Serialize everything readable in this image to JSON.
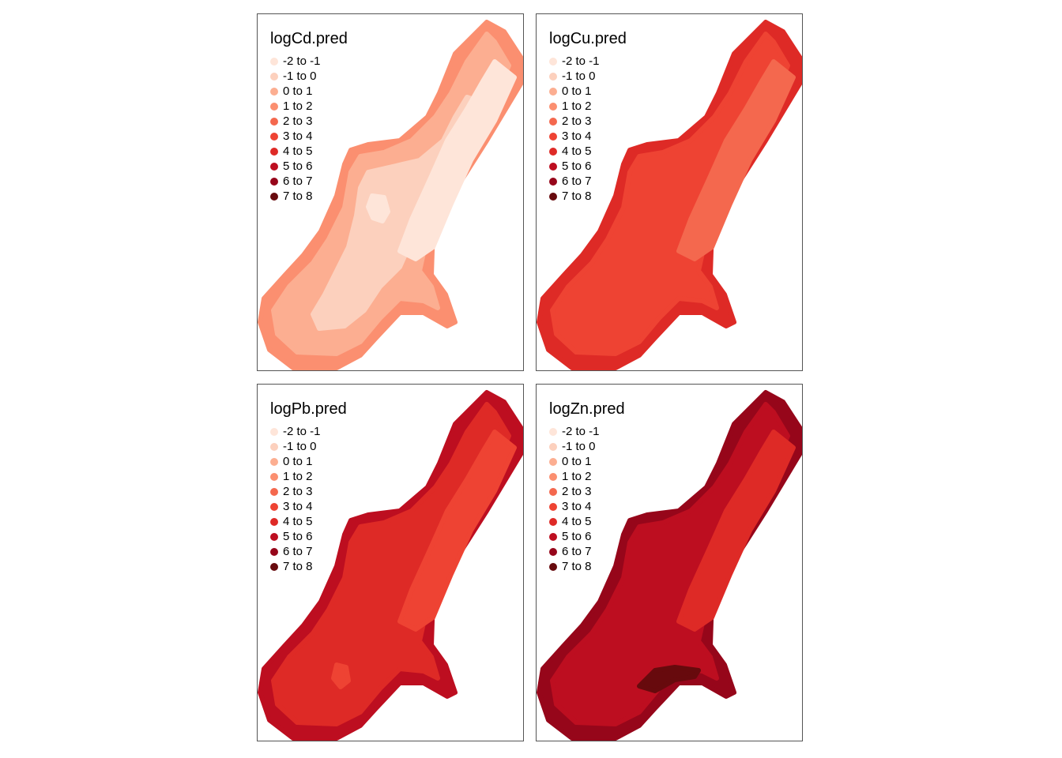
{
  "legend_classes": [
    {
      "label": "-2 to -1",
      "color": "#fee5d9"
    },
    {
      "label": "-1 to 0",
      "color": "#fcd0bd"
    },
    {
      "label": "0 to 1",
      "color": "#fcae91"
    },
    {
      "label": "1 to 2",
      "color": "#fb8f70"
    },
    {
      "label": "2 to 3",
      "color": "#f4684e"
    },
    {
      "label": "3 to 4",
      "color": "#ee4333"
    },
    {
      "label": "4 to 5",
      "color": "#de2a26"
    },
    {
      "label": "5 to 6",
      "color": "#bd0e20"
    },
    {
      "label": "6 to 7",
      "color": "#96061a"
    },
    {
      "label": "7 to 8",
      "color": "#670a0d"
    }
  ],
  "panels": [
    {
      "id": "cd",
      "title": "logCd.pred",
      "layers": [
        {
          "zone": "full",
          "class": "1 to 2"
        },
        {
          "zone": "inner1",
          "class": "0 to 1"
        },
        {
          "zone": "inner2",
          "class": "-1 to 0"
        },
        {
          "zone": "east-band",
          "class": "-2 to -1"
        },
        {
          "zone": "hole",
          "class": "-2 to -1"
        }
      ]
    },
    {
      "id": "cu",
      "title": "logCu.pred",
      "layers": [
        {
          "zone": "full",
          "class": "4 to 5"
        },
        {
          "zone": "inner1",
          "class": "3 to 4"
        },
        {
          "zone": "east-band",
          "class": "2 to 3"
        }
      ]
    },
    {
      "id": "pb",
      "title": "logPb.pred",
      "layers": [
        {
          "zone": "full",
          "class": "5 to 6"
        },
        {
          "zone": "inner1",
          "class": "4 to 5"
        },
        {
          "zone": "east-band",
          "class": "3 to 4"
        },
        {
          "zone": "spot",
          "class": "3 to 4"
        }
      ]
    },
    {
      "id": "zn",
      "title": "logZn.pred",
      "layers": [
        {
          "zone": "full",
          "class": "6 to 7"
        },
        {
          "zone": "inner1",
          "class": "5 to 6"
        },
        {
          "zone": "east-band",
          "class": "4 to 5"
        },
        {
          "zone": "bottom-dark",
          "class": "7 to 8"
        }
      ]
    }
  ]
}
